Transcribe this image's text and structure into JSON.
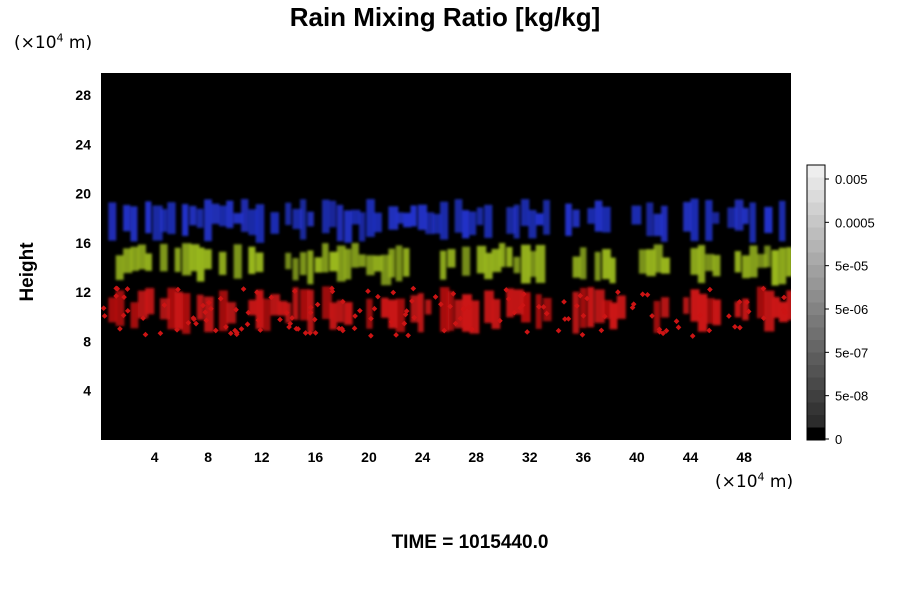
{
  "chart_data": {
    "type": "heatmap",
    "title": "Rain Mixing Ratio [kg/kg]",
    "ylabel": "Height",
    "x_unit_prefix": "(×10",
    "x_unit_exp": "4",
    "x_unit_suffix": " m)",
    "y_unit_prefix": "(×10",
    "y_unit_exp": "4",
    "y_unit_suffix": " m)",
    "xlim": [
      0,
      51.5
    ],
    "ylim": [
      0,
      29.8
    ],
    "x_ticks": [
      4,
      8,
      12,
      16,
      20,
      24,
      28,
      32,
      36,
      40,
      44,
      48
    ],
    "y_ticks": [
      4,
      8,
      12,
      16,
      20,
      24,
      28
    ],
    "time_label": "TIME = 1015440.0",
    "colorbar": {
      "levels": 22,
      "labels": [
        "0.005",
        "0.0005",
        "5e-05",
        "5e-06",
        "5e-07",
        "5e-08",
        "0"
      ]
    },
    "bands": [
      {
        "name": "blue",
        "color": "#2233cc",
        "y_range": [
          16,
          19.6
        ]
      },
      {
        "name": "yellow-green",
        "color": "#9ab81e",
        "y_range": [
          12.5,
          16
        ]
      },
      {
        "name": "red",
        "color": "#cc1414",
        "y_range": [
          8.6,
          12.5
        ]
      }
    ]
  }
}
